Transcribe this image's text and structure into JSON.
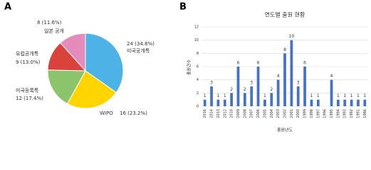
{
  "panel_labels": [
    "A",
    "B"
  ],
  "chart_data": [
    {
      "type": "pie",
      "categories": [
        "미국공개특",
        "WIPO",
        "미국등록특",
        "유럽공개특",
        "일본 공개"
      ],
      "values": [
        24,
        16,
        12,
        9,
        8
      ],
      "value_labels": [
        "24 (34.8%)",
        "16 (23.2%)",
        "12 (17.4%)",
        "9 (13.0%)",
        "8 (11.6%)"
      ],
      "colors": [
        "#4db3e6",
        "#ffd500",
        "#8cc46c",
        "#d9413b",
        "#e38bbb"
      ]
    },
    {
      "type": "bar",
      "title": "연도별 출원 현황",
      "xlabel": "출원년도",
      "ylabel": "출원건수",
      "categories": [
        "2016",
        "2014",
        "2013",
        "2012",
        "2010",
        "2009",
        "2008",
        "2007",
        "2006",
        "2005",
        "2004",
        "2003",
        "2002",
        "2001",
        "2000",
        "1999",
        "1998",
        "1997",
        "1996",
        "1995",
        "1994",
        "1993",
        "1992",
        "1991",
        "1986"
      ],
      "values": [
        1,
        3,
        1,
        1,
        2,
        6,
        2,
        3,
        6,
        1,
        2,
        4,
        8,
        10,
        3,
        6,
        1,
        1,
        0,
        4,
        1,
        1,
        1,
        1,
        1
      ],
      "color": "#4472c4",
      "ylim": [
        0,
        12
      ],
      "yticks": [
        0,
        2,
        4,
        6,
        8,
        10,
        12
      ],
      "grid": true
    }
  ]
}
